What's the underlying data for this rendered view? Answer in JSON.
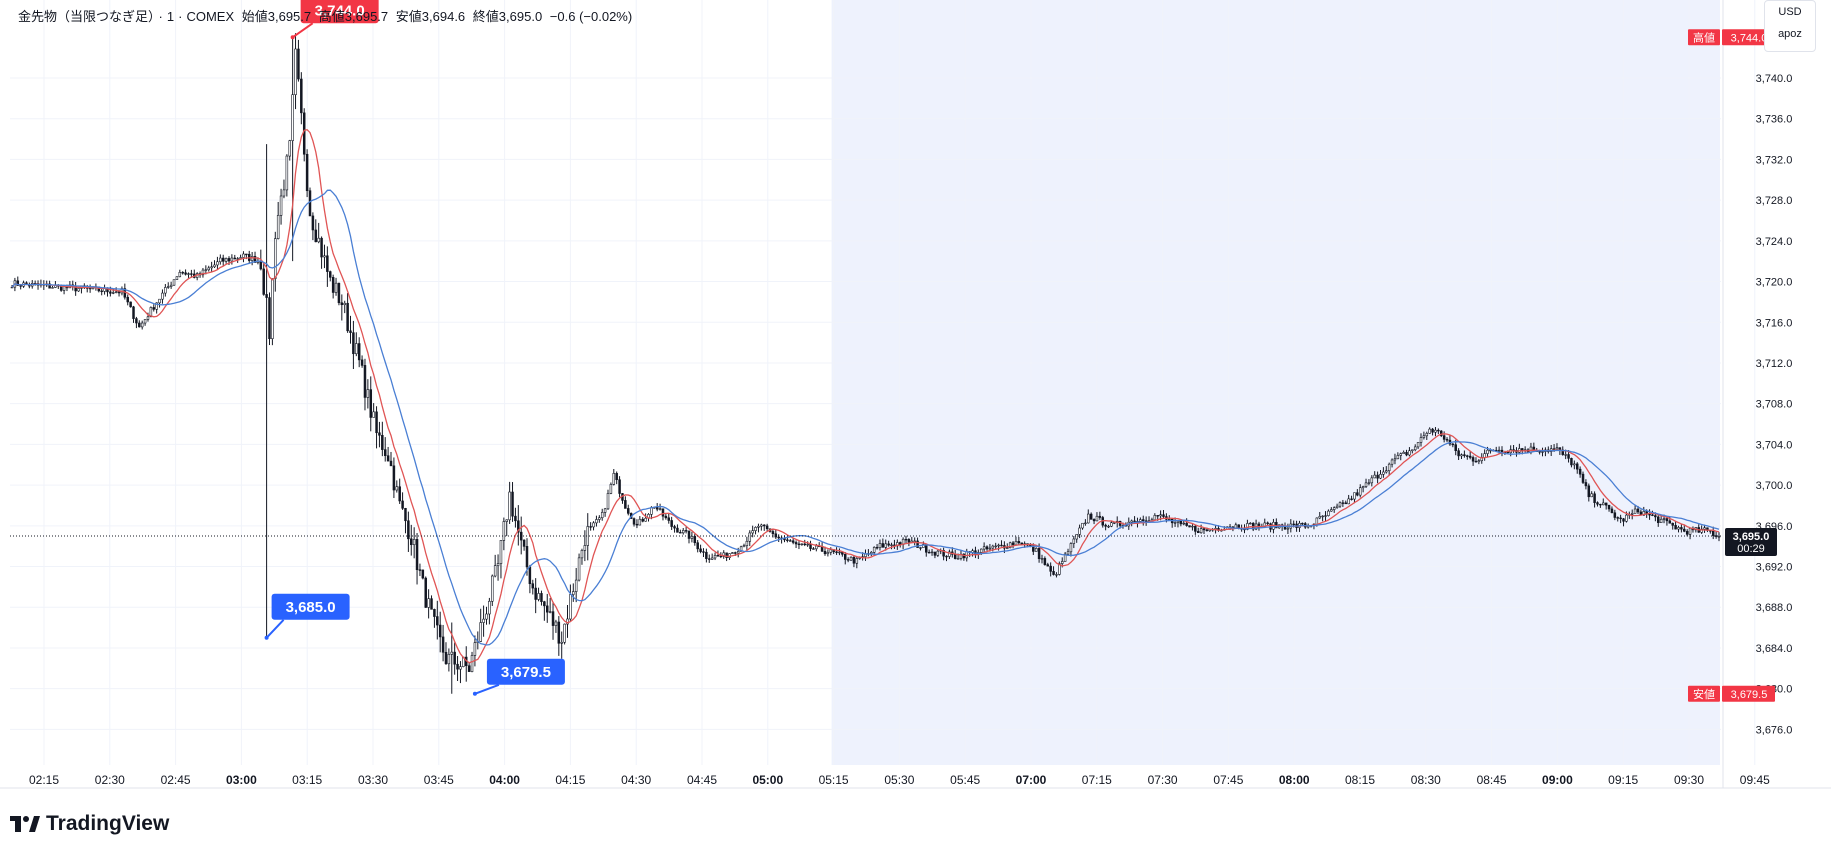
{
  "header": {
    "symbol": "金先物（当限つなぎ足）",
    "interval": "1",
    "exchange": "COMEX",
    "open_label": "始値",
    "open": "3,695.7",
    "high_label": "高値",
    "high": "3,695.7",
    "low_label": "安値",
    "low": "3,694.6",
    "close_label": "終値",
    "close": "3,695.0",
    "change": "−0.6 (−0.02%)"
  },
  "currency_box": {
    "currency": "USD",
    "user": "apoz"
  },
  "brand": {
    "name": "TradingView"
  },
  "colors": {
    "up_candle": "#ffffff",
    "down_candle": "#131722",
    "ma_fast": "#e05555",
    "ma_slow": "#4a7fd4",
    "callout_high": "#f23645",
    "callout_low": "#2962ff",
    "session_shade": "#eef2fd",
    "axis_text": "#131722"
  },
  "chart_data": {
    "type": "candlestick",
    "y_ticks": [
      "3,676.0",
      "3,680.0",
      "3,684.0",
      "3,688.0",
      "3,692.0",
      "3,696.0",
      "3,700.0",
      "3,704.0",
      "3,708.0",
      "3,712.0",
      "3,716.0",
      "3,720.0",
      "3,724.0",
      "3,728.0",
      "3,732.0",
      "3,736.0",
      "3,740.0"
    ],
    "y_tick_values": [
      3676,
      3680,
      3684,
      3688,
      3692,
      3696,
      3700,
      3704,
      3708,
      3712,
      3716,
      3720,
      3724,
      3728,
      3732,
      3736,
      3740
    ],
    "ylim": [
      3672.5,
      3745.5
    ],
    "x_ticks": [
      {
        "label": "02:15",
        "bold": false
      },
      {
        "label": "02:30",
        "bold": false
      },
      {
        "label": "02:45",
        "bold": false
      },
      {
        "label": "03:00",
        "bold": true
      },
      {
        "label": "03:15",
        "bold": false
      },
      {
        "label": "03:30",
        "bold": false
      },
      {
        "label": "03:45",
        "bold": false
      },
      {
        "label": "04:00",
        "bold": true
      },
      {
        "label": "04:15",
        "bold": false
      },
      {
        "label": "04:30",
        "bold": false
      },
      {
        "label": "04:45",
        "bold": false
      },
      {
        "label": "05:00",
        "bold": true
      },
      {
        "label": "05:15",
        "bold": false
      },
      {
        "label": "05:30",
        "bold": false
      },
      {
        "label": "05:45",
        "bold": false
      },
      {
        "label": "07:00",
        "bold": true
      },
      {
        "label": "07:15",
        "bold": false
      },
      {
        "label": "07:30",
        "bold": false
      },
      {
        "label": "07:45",
        "bold": false
      },
      {
        "label": "08:00",
        "bold": true
      },
      {
        "label": "08:15",
        "bold": false
      },
      {
        "label": "08:30",
        "bold": false
      },
      {
        "label": "08:45",
        "bold": false
      },
      {
        "label": "09:00",
        "bold": true
      },
      {
        "label": "09:15",
        "bold": false
      },
      {
        "label": "09:30",
        "bold": false
      },
      {
        "label": "09:45",
        "bold": false
      }
    ],
    "anchors": [
      [
        0,
        3719.8
      ],
      [
        38,
        3719.0
      ],
      [
        44,
        3715.5
      ],
      [
        50,
        3718
      ],
      [
        58,
        3721.0
      ],
      [
        64,
        3720.5
      ],
      [
        72,
        3722.0
      ],
      [
        80,
        3722.5
      ],
      [
        86,
        3722.0
      ],
      [
        89,
        3715.0
      ],
      [
        91,
        3725.0
      ],
      [
        96,
        3733.0
      ],
      [
        98,
        3742.0
      ],
      [
        100,
        3736.0
      ],
      [
        103,
        3727.0
      ],
      [
        106,
        3724.0
      ],
      [
        110,
        3720.0
      ],
      [
        114,
        3718.0
      ],
      [
        120,
        3712.0
      ],
      [
        126,
        3705.0
      ],
      [
        130,
        3703.0
      ],
      [
        134,
        3698.0
      ],
      [
        138,
        3695.0
      ],
      [
        142,
        3690.0
      ],
      [
        146,
        3686.0
      ],
      [
        150,
        3683.0
      ],
      [
        158,
        3682.0
      ],
      [
        164,
        3688.0
      ],
      [
        168,
        3692.0
      ],
      [
        172,
        3699.0
      ],
      [
        176,
        3694.0
      ],
      [
        180,
        3690.0
      ],
      [
        186,
        3687.0
      ],
      [
        190,
        3685.0
      ],
      [
        194,
        3690.0
      ],
      [
        198,
        3695.0
      ],
      [
        204,
        3697.0
      ],
      [
        208,
        3701.0
      ],
      [
        212,
        3698.0
      ],
      [
        216,
        3696.0
      ],
      [
        222,
        3698.0
      ],
      [
        228,
        3696.0
      ],
      [
        234,
        3695.0
      ],
      [
        240,
        3693.0
      ],
      [
        246,
        3693.0
      ],
      [
        252,
        3694.0
      ],
      [
        258,
        3696.0
      ],
      [
        264,
        3695.0
      ],
      [
        272,
        3694.0
      ],
      [
        282,
        3693.5
      ],
      [
        292,
        3692.5
      ],
      [
        300,
        3694.0
      ],
      [
        310,
        3694.5
      ],
      [
        318,
        3693.5
      ],
      [
        326,
        3693.0
      ],
      [
        334,
        3693.5
      ],
      [
        342,
        3694.0
      ],
      [
        348,
        3694.5
      ],
      [
        354,
        3693.5
      ],
      [
        360,
        3691.0
      ],
      [
        366,
        3694.0
      ],
      [
        372,
        3697.0
      ],
      [
        380,
        3696.0
      ],
      [
        388,
        3696.5
      ],
      [
        396,
        3697.0
      ],
      [
        404,
        3696.0
      ],
      [
        412,
        3695.5
      ],
      [
        420,
        3696.0
      ],
      [
        430,
        3696.0
      ],
      [
        440,
        3696.0
      ],
      [
        448,
        3696.0
      ],
      [
        454,
        3697.0
      ],
      [
        462,
        3698.5
      ],
      [
        470,
        3700.5
      ],
      [
        478,
        3702.5
      ],
      [
        484,
        3703.5
      ],
      [
        490,
        3705.5
      ],
      [
        494,
        3705.0
      ],
      [
        500,
        3703.0
      ],
      [
        506,
        3702.5
      ],
      [
        512,
        3703.5
      ],
      [
        520,
        3703.5
      ],
      [
        528,
        3703.5
      ],
      [
        534,
        3703.5
      ],
      [
        540,
        3702.0
      ],
      [
        545,
        3699.0
      ],
      [
        550,
        3698.0
      ],
      [
        556,
        3696.5
      ],
      [
        562,
        3697.5
      ],
      [
        570,
        3696.5
      ],
      [
        578,
        3695.5
      ],
      [
        586,
        3695.5
      ],
      [
        590,
        3695.0
      ]
    ],
    "spikes": [
      {
        "bar": 88,
        "high": 3733.5,
        "low": 3685.0
      },
      {
        "bar": 97,
        "high": 3744.0,
        "low": 3722.0
      },
      {
        "bar": 152,
        "high": 3686.5,
        "low": 3679.5
      }
    ],
    "series": [
      {
        "name": "",
        "period": 9,
        "color_key": "ma_fast"
      },
      {
        "name": "",
        "period": 20,
        "color_key": "ma_slow"
      }
    ],
    "last_price": {
      "value": "3,695.0",
      "countdown": "00:29",
      "price": 3695.0
    },
    "high_marker": {
      "label": "高値",
      "value": "3,744.0",
      "price": 3744.0
    },
    "low_marker": {
      "label": "安値",
      "value": "3,679.5",
      "price": 3679.5
    },
    "callouts": [
      {
        "text": "3,744.0",
        "price": 3744.0,
        "bar": 97,
        "kind": "high"
      },
      {
        "text": "3,685.0",
        "price": 3685.0,
        "bar": 88,
        "kind": "low"
      },
      {
        "text": "3,679.5",
        "price": 3679.5,
        "bar": 160,
        "kind": "low"
      }
    ],
    "shaded_session": {
      "from_label": "05:15",
      "to_label": "09:40"
    }
  }
}
